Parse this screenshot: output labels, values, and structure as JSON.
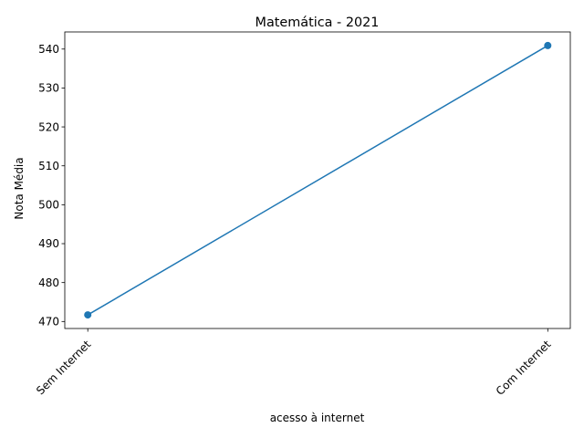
{
  "chart_data": {
    "type": "line",
    "title": "Matemática - 2021",
    "xlabel": "acesso à internet",
    "ylabel": "Nota Média",
    "categories": [
      "Sem Internet",
      "Com Internet"
    ],
    "series": [
      {
        "values": [
          471.7,
          540.9
        ],
        "color": "#1f77b4",
        "marker": "circle"
      }
    ],
    "yticks": [
      470,
      480,
      490,
      500,
      510,
      520,
      530,
      540
    ],
    "ylim": [
      468.2,
      544.4
    ],
    "grid": false
  }
}
